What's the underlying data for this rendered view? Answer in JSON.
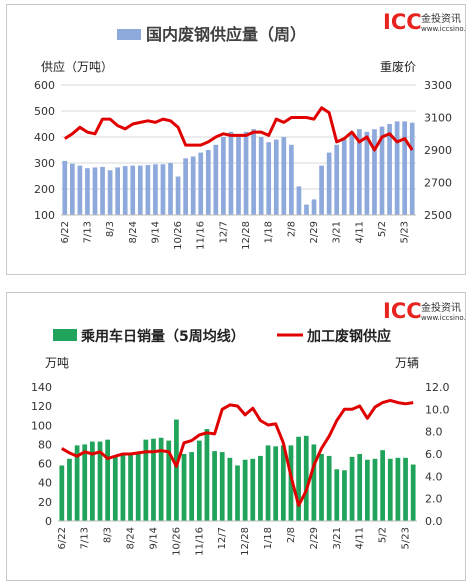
{
  "logo": {
    "mark": "ICC",
    "name": "金投资讯",
    "url": "www.iccsino.com",
    "reg": "®"
  },
  "colors": {
    "bar1": "#8ea9db",
    "bar2": "#20a35a",
    "line": "#e00000",
    "logo_ic": "#e8231e",
    "logo_c": "#f0a020",
    "grid": "#d9d9d9"
  },
  "x_ticks": [
    "6/22",
    "7/13",
    "8/3",
    "8/24",
    "9/14",
    "10/26",
    "11/16",
    "12/7",
    "12/28",
    "1/18",
    "2/8",
    "2/29",
    "3/21",
    "4/11",
    "5/2",
    "5/23"
  ],
  "chart_data": [
    {
      "type": "bar+line",
      "title": "国内废钢供应量（周）",
      "ylabel": "供应（万吨）",
      "y2label": "重废价",
      "ylim": [
        100,
        600
      ],
      "y_ticks": [
        100,
        200,
        300,
        400,
        500,
        600
      ],
      "y2lim": [
        2500,
        3300
      ],
      "y2_ticks": [
        2500,
        2700,
        2900,
        3100,
        3300
      ],
      "grid": true,
      "legend": "top",
      "series": [
        {
          "name": "国内废钢供应量（周）",
          "kind": "bar",
          "axis": "left",
          "values": [
            308,
            297,
            290,
            280,
            283,
            285,
            272,
            283,
            288,
            290,
            290,
            292,
            295,
            295,
            300,
            248,
            318,
            325,
            340,
            350,
            370,
            400,
            420,
            410,
            420,
            430,
            400,
            380,
            390,
            400,
            370,
            210,
            140,
            160,
            290,
            340,
            370,
            390,
            420,
            430,
            420,
            430,
            440,
            450,
            460,
            460,
            455
          ]
        },
        {
          "name": "重废价",
          "kind": "line",
          "axis": "right",
          "values": [
            2970,
            3000,
            3040,
            3010,
            3000,
            3090,
            3090,
            3050,
            3030,
            3060,
            3070,
            3080,
            3070,
            3090,
            3080,
            3040,
            2930,
            2930,
            2930,
            2950,
            2980,
            3000,
            2990,
            2990,
            2990,
            3010,
            3010,
            2990,
            3090,
            3070,
            3100,
            3100,
            3100,
            3090,
            3160,
            3130,
            2950,
            2970,
            3010,
            2950,
            2980,
            2900,
            2980,
            3000,
            2950,
            2970,
            2900
          ]
        }
      ]
    },
    {
      "type": "bar+line",
      "legend": "top",
      "ylabel": "万吨",
      "y2label": "万辆",
      "ylim": [
        0,
        140
      ],
      "y_ticks": [
        0,
        20,
        40,
        60,
        80,
        100,
        120,
        140
      ],
      "y2lim": [
        0,
        12
      ],
      "y2_ticks": [
        "0.0",
        "2.0",
        "4.0",
        "6.0",
        "8.0",
        "10.0",
        "12.0"
      ],
      "grid": false,
      "series": [
        {
          "name": "乘用车日销量（5周均线）",
          "kind": "bar",
          "axis": "left",
          "values": [
            58,
            65,
            79,
            80,
            83,
            83,
            85,
            67,
            70,
            69,
            70,
            85,
            86,
            87,
            84,
            106,
            70,
            72,
            84,
            96,
            73,
            72,
            66,
            58,
            64,
            65,
            68,
            79,
            78,
            79,
            79,
            88,
            89,
            80,
            70,
            68,
            54,
            53,
            67,
            70,
            64,
            65,
            74,
            65,
            66,
            66,
            59
          ]
        },
        {
          "name": "加工废钢供应",
          "kind": "line",
          "axis": "right",
          "values": [
            6.5,
            6.1,
            5.8,
            6.2,
            6.0,
            6.2,
            5.6,
            5.8,
            6.0,
            6.0,
            6.1,
            6.2,
            6.2,
            6.3,
            6.2,
            4.9,
            7.0,
            7.2,
            7.7,
            7.9,
            7.8,
            10.0,
            10.4,
            10.3,
            9.5,
            10.1,
            9.0,
            8.6,
            8.7,
            7.0,
            4.0,
            1.4,
            2.7,
            5.0,
            6.5,
            7.6,
            9.0,
            10.0,
            10.0,
            10.3,
            9.2,
            10.2,
            10.6,
            10.8,
            10.6,
            10.5,
            10.6
          ]
        }
      ]
    }
  ]
}
